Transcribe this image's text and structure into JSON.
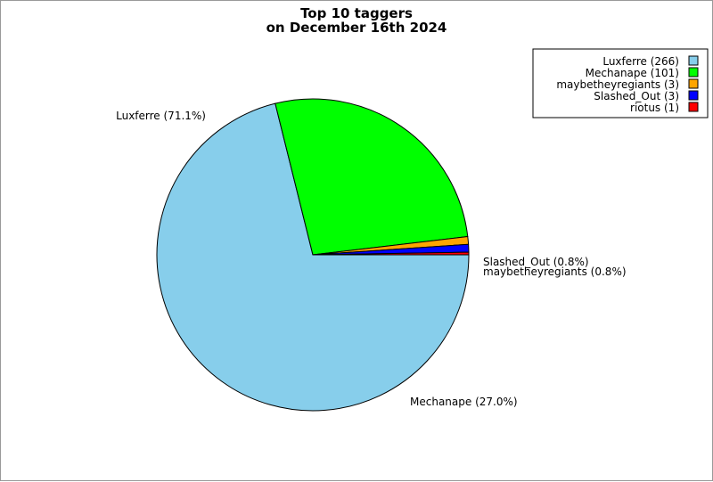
{
  "chart_data": {
    "type": "pie",
    "title_lines": [
      "Top 10 taggers",
      "on December 16th 2024"
    ],
    "slices": [
      {
        "name": "Luxferre",
        "value": 266,
        "percent_label": "Luxferre (71.1%)",
        "legend_label": "Luxferre (266)",
        "color": "#87ceeb"
      },
      {
        "name": "Mechanape",
        "value": 101,
        "percent_label": "Mechanape (27.0%)",
        "legend_label": "Mechanape (101)",
        "color": "#00ff00"
      },
      {
        "name": "maybetheyregiants",
        "value": 3,
        "percent_label": "maybetheyregiants (0.8%)",
        "legend_label": "maybetheyregiants (3)",
        "color": "#ffa500"
      },
      {
        "name": "Slashed_Out",
        "value": 3,
        "percent_label": "Slashed_Out (0.8%)",
        "legend_label": "Slashed_Out (3)",
        "color": "#0000ff"
      },
      {
        "name": "riotus",
        "value": 1,
        "percent_label": "",
        "legend_label": "riotus (1)",
        "color": "#ff0000"
      }
    ],
    "legend_placement": "top-right",
    "start": "3 o'clock",
    "direction": "clockwise"
  }
}
